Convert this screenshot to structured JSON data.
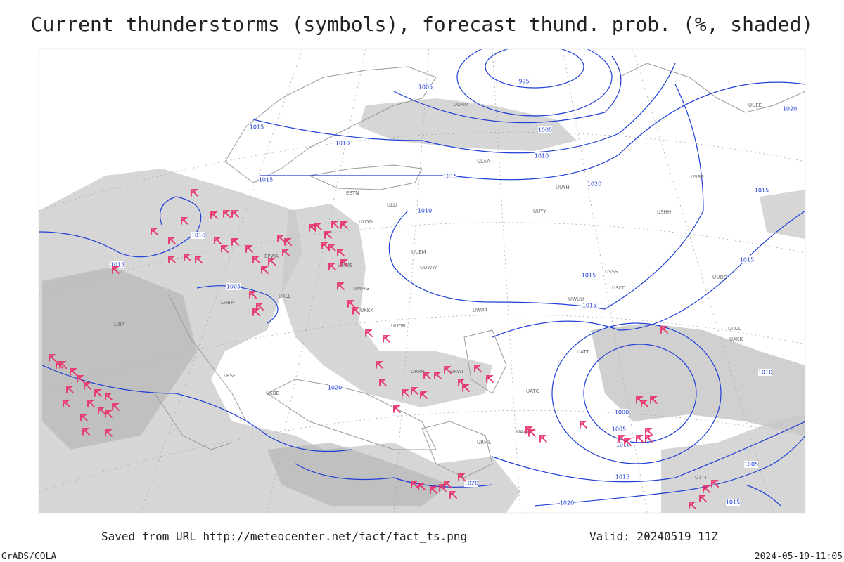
{
  "title": "Current thunderstorms (symbols), forecast thund. prob. (%, shaded)",
  "footer": {
    "source": "Saved from URL http://meteocenter.net/fact/fact_ts.png",
    "valid": "Valid: 20240519 11Z",
    "software": "GrADS/COLA",
    "timestamp": "2024-05-19-11:05"
  },
  "isobar_labels": [
    "995",
    "1005",
    "1005",
    "1015",
    "1010",
    "1010",
    "1015",
    "1015",
    "1020",
    "1010",
    "1015",
    "1005",
    "1010",
    "1015",
    "1015",
    "1020",
    "1015",
    "1015",
    "1020",
    "1000",
    "1005",
    "1010",
    "1015",
    "1020",
    "1020",
    "1005",
    "1010",
    "1015"
  ],
  "station_labels": [
    "ULAA",
    "UUYY",
    "ULLI",
    "ULOO",
    "UUEM",
    "UUWW",
    "UMMS",
    "UMMG",
    "UKLL",
    "UKKK",
    "UUOB",
    "URRP",
    "URML",
    "UAAA",
    "UACC",
    "UATT",
    "USSS",
    "USCC",
    "UWUU",
    "UWPP",
    "UUOO",
    "URWI",
    "UKBB",
    "LIRA",
    "LBSF",
    "LHBP",
    "EPWA",
    "EETN",
    "ULMM",
    "UUYH",
    "USRR",
    "USHH",
    "UUEE",
    "UATG",
    "UAKK",
    "UTTT"
  ]
}
